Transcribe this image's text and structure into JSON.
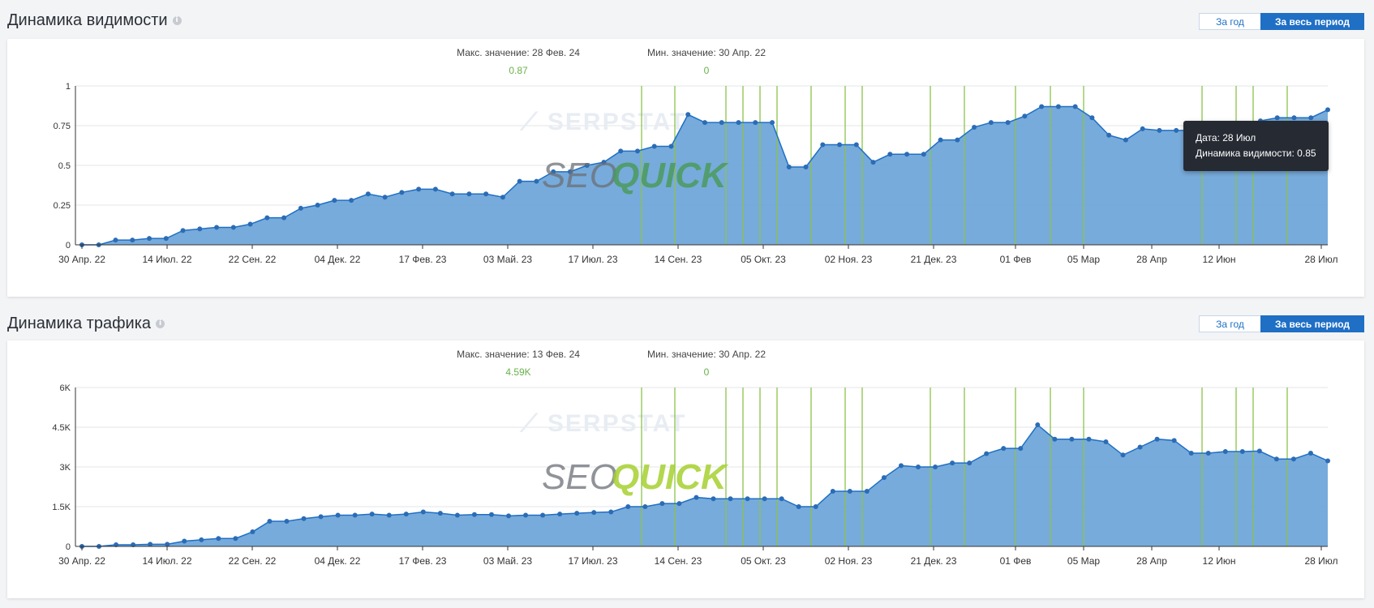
{
  "chart_data": [
    {
      "type": "area",
      "title": "Динамика видимости",
      "ylim": [
        0,
        1
      ],
      "yticks": [
        0,
        0.25,
        0.5,
        0.75,
        1
      ],
      "ytick_labels": [
        "0",
        "0.25",
        "0.5",
        "0.75",
        "1"
      ],
      "xtick_labels": [
        "30 Апр. 22",
        "14 Июл. 22",
        "22 Сен. 22",
        "04 Дек. 22",
        "17 Фев. 23",
        "03 Май. 23",
        "17 Июл. 23",
        "14 Сен. 23",
        "05 Окт. 23",
        "02 Ноя. 23",
        "21 Дек. 23",
        "01 Фев",
        "05 Мар",
        "28 Апр",
        "12 Июн",
        "28 Июл"
      ],
      "max_label": "Макс. значение: 28 Фев. 24",
      "max_value": "0.87",
      "min_label": "Мин. значение: 30 Апр. 22",
      "min_value": "0",
      "grid": true,
      "color": "#1f6fc5",
      "fill_color": "#70a7d9",
      "marker_color": "#2b6cb5",
      "values": [
        0,
        0,
        0.03,
        0.03,
        0.04,
        0.04,
        0.09,
        0.1,
        0.11,
        0.11,
        0.13,
        0.17,
        0.17,
        0.23,
        0.25,
        0.28,
        0.28,
        0.32,
        0.3,
        0.33,
        0.35,
        0.35,
        0.32,
        0.32,
        0.32,
        0.3,
        0.4,
        0.4,
        0.46,
        0.46,
        0.5,
        0.52,
        0.59,
        0.59,
        0.62,
        0.62,
        0.82,
        0.77,
        0.77,
        0.77,
        0.77,
        0.77,
        0.49,
        0.49,
        0.63,
        0.63,
        0.63,
        0.52,
        0.57,
        0.57,
        0.57,
        0.66,
        0.66,
        0.74,
        0.77,
        0.77,
        0.81,
        0.87,
        0.87,
        0.87,
        0.8,
        0.69,
        0.66,
        0.73,
        0.72,
        0.72,
        0.72,
        0.72,
        0.72,
        0.76,
        0.78,
        0.8,
        0.8,
        0.8,
        0.85
      ]
    },
    {
      "type": "area",
      "title": "Динамика трафика",
      "ylim": [
        0,
        6000
      ],
      "yticks": [
        0,
        1500,
        3000,
        4500,
        6000
      ],
      "ytick_labels": [
        "0",
        "1.5K",
        "3K",
        "4.5K",
        "6K"
      ],
      "xtick_labels": [
        "30 Апр. 22",
        "14 Июл. 22",
        "22 Сен. 22",
        "04 Дек. 22",
        "17 Фев. 23",
        "03 Май. 23",
        "17 Июл. 23",
        "14 Сен. 23",
        "05 Окт. 23",
        "02 Ноя. 23",
        "21 Дек. 23",
        "01 Фев",
        "05 Мар",
        "28 Апр",
        "12 Июн",
        "28 Июл"
      ],
      "max_label": "Макс. значение: 13 Фев. 24",
      "max_value": "4.59K",
      "min_label": "Мин. значение: 30 Апр. 22",
      "min_value": "0",
      "grid": true,
      "color": "#1f6fc5",
      "fill_color": "#70a7d9",
      "marker_color": "#2b6cb5",
      "values": [
        0,
        0,
        60,
        60,
        80,
        80,
        200,
        250,
        300,
        300,
        550,
        950,
        950,
        1050,
        1120,
        1180,
        1180,
        1220,
        1180,
        1220,
        1300,
        1250,
        1180,
        1200,
        1200,
        1150,
        1180,
        1180,
        1220,
        1250,
        1280,
        1300,
        1500,
        1500,
        1620,
        1620,
        1850,
        1800,
        1800,
        1800,
        1800,
        1800,
        1500,
        1500,
        2080,
        2080,
        2080,
        2600,
        3050,
        3000,
        3000,
        3150,
        3150,
        3500,
        3700,
        3700,
        4590,
        4050,
        4050,
        4050,
        3950,
        3450,
        3750,
        4050,
        4000,
        3520,
        3520,
        3580,
        3580,
        3600,
        3300,
        3300,
        3520,
        3230
      ]
    }
  ],
  "sections": [
    {
      "title": "Динамика видимости",
      "btn_year": "За год",
      "btn_all": "За весь период"
    },
    {
      "title": "Динамика трафика",
      "btn_year": "За год",
      "btn_all": "За весь период"
    }
  ],
  "event_marker_color": "#8bc34a",
  "watermark": {
    "serpstat": "SERPSTAT",
    "seo": "SEO",
    "quick": "QUICK"
  },
  "tooltip": {
    "line1": "Дата: 28 Июл",
    "line2": "Динамика видимости: 0.85"
  }
}
